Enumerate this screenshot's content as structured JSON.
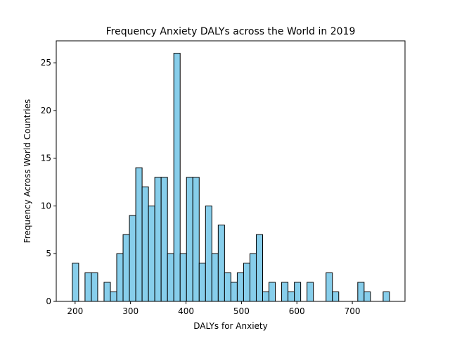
{
  "chart_data": {
    "type": "bar",
    "title": "Frequency Anxiety DALYs across the World in 2019",
    "xlabel": "DALYs for Anxiety",
    "ylabel": "Frequency Across World Countries",
    "xlim": [
      166,
      795
    ],
    "ylim": [
      0,
      27.3
    ],
    "xticks": [
      200,
      300,
      400,
      500,
      600,
      700
    ],
    "yticks": [
      0,
      5,
      10,
      15,
      20,
      25
    ],
    "bin_start": 195,
    "bin_width": 11.44,
    "bins": 50,
    "values": [
      4,
      0,
      3,
      3,
      0,
      2,
      1,
      5,
      7,
      9,
      14,
      12,
      10,
      13,
      13,
      5,
      26,
      5,
      13,
      13,
      4,
      10,
      5,
      8,
      3,
      2,
      3,
      4,
      5,
      7,
      1,
      2,
      0,
      2,
      1,
      2,
      0,
      2,
      0,
      0,
      3,
      1,
      0,
      0,
      0,
      2,
      1,
      0,
      0,
      1
    ],
    "bar_color": "#87ceeb",
    "grid": false
  }
}
